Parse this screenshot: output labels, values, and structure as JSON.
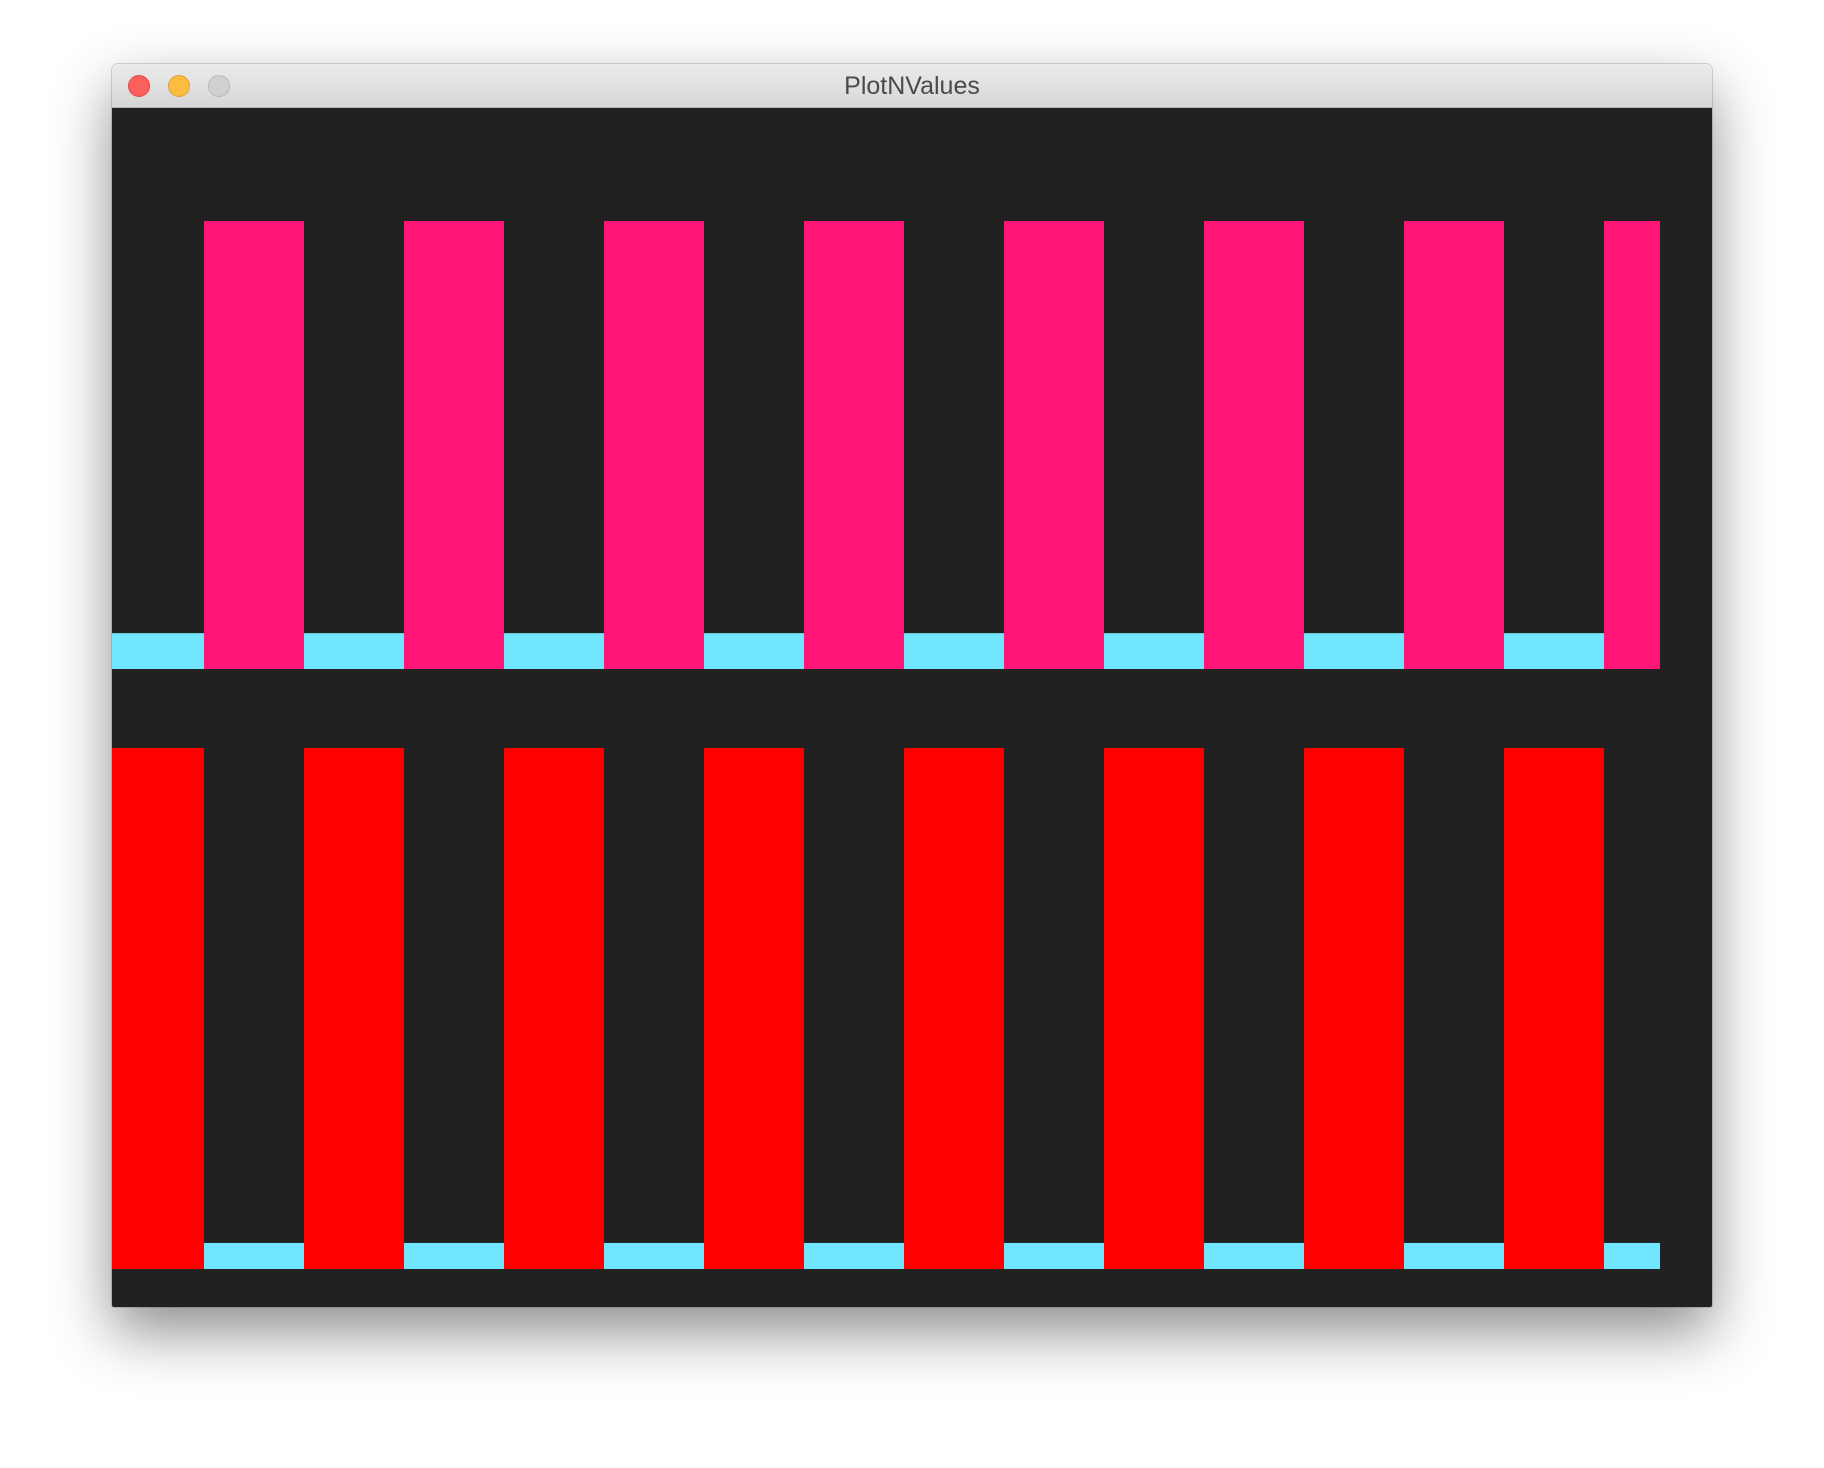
{
  "window": {
    "title": "PlotNValues"
  },
  "plots": [
    {
      "high_color": "#ff1477",
      "low_color": "#73e6ff",
      "values": [
        0.08,
        1,
        0.08,
        1,
        0.08,
        1,
        0.08,
        1,
        0.08,
        1,
        0.08,
        1,
        0.08,
        1,
        0.08,
        1
      ]
    },
    {
      "high_color": "#ff0000",
      "low_color": "#73e6ff",
      "values": [
        1,
        0.05,
        1,
        0.05,
        1,
        0.05,
        1,
        0.05,
        1,
        0.05,
        1,
        0.05,
        1,
        0.05,
        1,
        0.05
      ]
    }
  ]
}
